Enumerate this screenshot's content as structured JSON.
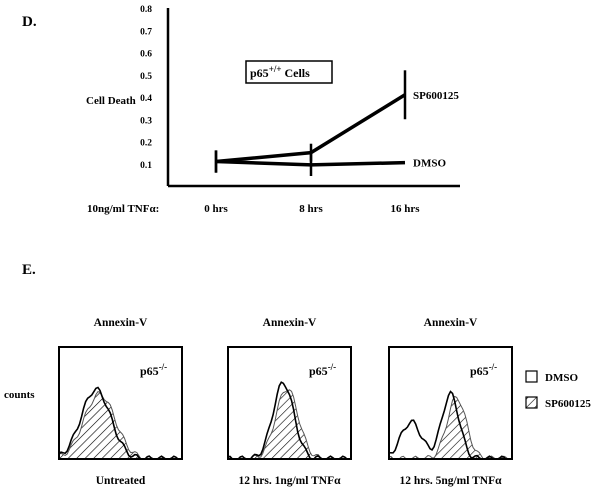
{
  "panel_d_label": "D.",
  "panel_e_label": "E.",
  "chart_data": [
    {
      "type": "line",
      "title": "",
      "ylabel": "Cell Death",
      "xlabel_prefix": "10ng/ml TNFα:",
      "categories": [
        "0 hrs",
        "8 hrs",
        "16 hrs"
      ],
      "ylim": [
        0,
        0.8
      ],
      "yticks": [
        "0.1",
        "0.2",
        "0.3",
        "0.4",
        "0.5",
        "0.6",
        "0.7",
        "0.8"
      ],
      "annotation_base": "p65",
      "annotation_sup": "+/+",
      "annotation_rest": " Cells",
      "series": [
        {
          "name": "SP600125",
          "values": [
            0.11,
            0.15,
            0.41
          ],
          "error": [
            0.05,
            0.04,
            0.11
          ]
        },
        {
          "name": "DMSO",
          "values": [
            0.11,
            0.095,
            0.105
          ],
          "error": [
            0.05,
            0.05,
            0.0
          ]
        }
      ]
    },
    {
      "type": "histogram",
      "ylabel": "counts",
      "panel_title": "Annexin-V",
      "genotype_base": "p65",
      "genotype_sup": "-/-",
      "legend": [
        {
          "name": "DMSO",
          "pattern": "open"
        },
        {
          "name": "SP600125",
          "pattern": "hatched"
        }
      ],
      "panels": [
        {
          "caption": "Untreated"
        },
        {
          "caption": "12 hrs. 1ng/ml TNFα"
        },
        {
          "caption": "12 hrs. 5ng/ml TNFα"
        }
      ]
    }
  ]
}
